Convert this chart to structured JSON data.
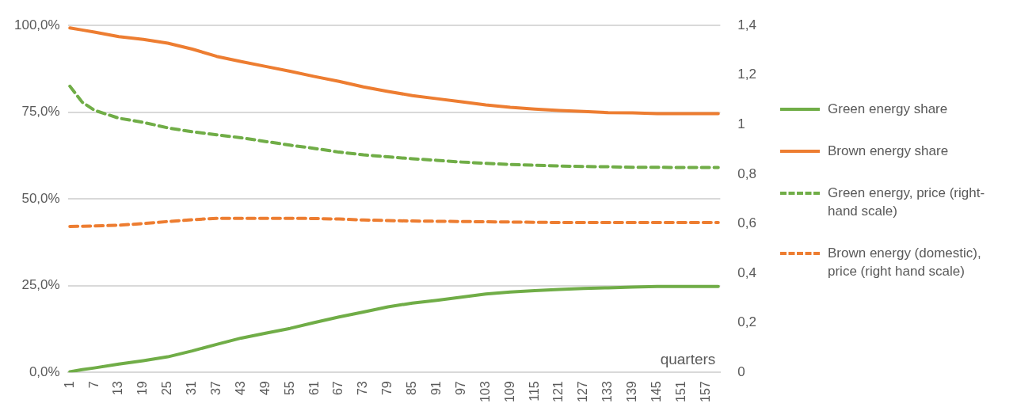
{
  "chart_data": {
    "type": "line",
    "xlabel": "quarters",
    "x": [
      1,
      4,
      7,
      13,
      19,
      25,
      31,
      37,
      43,
      49,
      55,
      61,
      67,
      73,
      79,
      85,
      91,
      97,
      103,
      109,
      115,
      121,
      127,
      133,
      139,
      145,
      151,
      157,
      160
    ],
    "series": [
      {
        "name": "Green energy share",
        "color": "#70ad47",
        "line_style": "solid",
        "values": [
          0.2,
          0.8,
          1.3,
          2.4,
          3.4,
          4.5,
          6.2,
          8.1,
          9.9,
          11.3,
          12.7,
          14.4,
          16.0,
          17.4,
          18.9,
          20.0,
          20.8,
          21.7,
          22.6,
          23.2,
          23.6,
          23.9,
          24.2,
          24.4,
          24.6,
          24.8,
          24.8,
          24.8,
          24.8
        ]
      },
      {
        "name": "Brown energy share",
        "color": "#ed7d31",
        "line_style": "solid",
        "values": [
          99.3,
          98.7,
          98.1,
          96.8,
          96.0,
          94.9,
          93.2,
          91.1,
          89.6,
          88.2,
          86.8,
          85.3,
          83.9,
          82.3,
          81.0,
          79.8,
          78.9,
          78.0,
          77.1,
          76.4,
          75.9,
          75.5,
          75.2,
          74.9,
          74.8,
          74.6,
          74.6,
          74.6,
          74.6
        ]
      },
      {
        "name": "Green energy, price (right-hand scale)",
        "color": "#70ad47",
        "line_style": "dashed",
        "axis": "y2",
        "values": [
          1.155,
          1.091,
          1.058,
          1.026,
          1.009,
          0.987,
          0.971,
          0.959,
          0.947,
          0.932,
          0.917,
          0.904,
          0.889,
          0.878,
          0.87,
          0.862,
          0.856,
          0.849,
          0.844,
          0.839,
          0.836,
          0.833,
          0.831,
          0.83,
          0.828,
          0.828,
          0.827,
          0.827,
          0.827
        ]
      },
      {
        "name": "Brown energy (domestic), price (right hand scale)",
        "color": "#ed7d31",
        "line_style": "dashed",
        "axis": "y2",
        "values": [
          0.589,
          0.59,
          0.591,
          0.594,
          0.601,
          0.609,
          0.616,
          0.622,
          0.622,
          0.622,
          0.622,
          0.621,
          0.619,
          0.615,
          0.613,
          0.611,
          0.61,
          0.609,
          0.608,
          0.607,
          0.606,
          0.605,
          0.605,
          0.605,
          0.605,
          0.605,
          0.605,
          0.605,
          0.605
        ]
      }
    ],
    "xlim": [
      0.5,
      160.5
    ],
    "xticks": [
      1,
      7,
      13,
      19,
      25,
      31,
      37,
      43,
      49,
      55,
      61,
      67,
      73,
      79,
      85,
      91,
      97,
      103,
      109,
      115,
      121,
      127,
      133,
      139,
      145,
      151,
      157
    ],
    "ylim": [
      0,
      100
    ],
    "yticks": [
      {
        "value": 0,
        "label": "0,0%"
      },
      {
        "value": 25,
        "label": "25,0%"
      },
      {
        "value": 50,
        "label": "50,0%"
      },
      {
        "value": 75,
        "label": "75,0%"
      },
      {
        "value": 100,
        "label": "100,0%"
      }
    ],
    "y2lim": [
      0,
      1.4
    ],
    "y2ticks": [
      0,
      {
        "value": 0.2,
        "label": "0,2"
      },
      {
        "value": 0.4,
        "label": "0,4"
      },
      {
        "value": 0.6,
        "label": "0,6"
      },
      {
        "value": 0.8,
        "label": "0,8"
      },
      1,
      {
        "value": 1.2,
        "label": "1,2"
      },
      {
        "value": 1.4,
        "label": "1,4"
      }
    ],
    "grid": "y",
    "legend": "right",
    "marker": "none"
  }
}
